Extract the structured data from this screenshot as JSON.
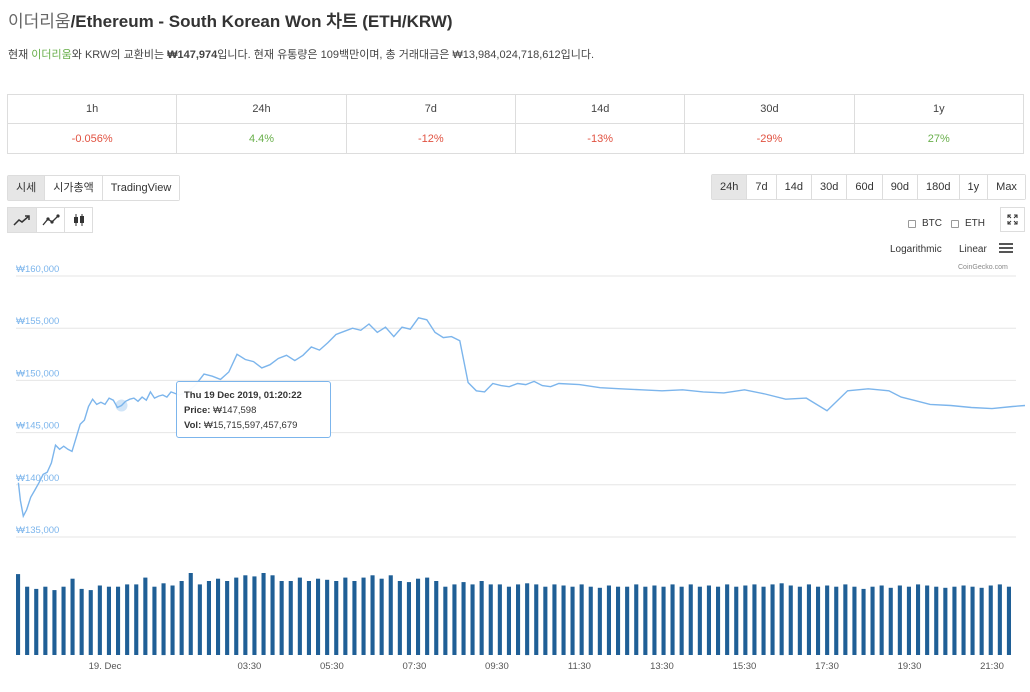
{
  "header": {
    "title_prefix": "이더리움",
    "title_main": "/Ethereum - South Korean Won 차트 (ETH/KRW)"
  },
  "description": {
    "pre": "현재 ",
    "coin_link": "이더리움",
    "mid": "와 KRW의 교환비는 ",
    "rate": "₩147,974",
    "post": "입니다. 현재 유통량은 109백만이며, 총 거래대금은 ₩13,984,024,718,612입니다."
  },
  "performance": {
    "headers": [
      "1h",
      "24h",
      "7d",
      "14d",
      "30d",
      "1y"
    ],
    "values": [
      "-0.056%",
      "4.4%",
      "-12%",
      "-13%",
      "-29%",
      "27%"
    ],
    "signs": [
      "neg",
      "pos",
      "neg",
      "neg",
      "neg",
      "pos"
    ],
    "colors": {
      "negative": "#e15241",
      "positive": "#6ab04c"
    }
  },
  "view_tabs": [
    "시세",
    "시가총액",
    "TradingView"
  ],
  "view_active": 0,
  "range_tabs": [
    "24h",
    "7d",
    "14d",
    "30d",
    "60d",
    "90d",
    "180d",
    "1y",
    "Max"
  ],
  "range_active": 0,
  "chart_type_icons": [
    "line-chart-icon",
    "ohlc-line-icon",
    "candlestick-icon"
  ],
  "compare": {
    "btc": "BTC",
    "eth": "ETH"
  },
  "scale": {
    "log": "Logarithmic",
    "linear": "Linear"
  },
  "credit": "CoinGecko.com",
  "tooltip": {
    "date": "Thu 19 Dec 2019, 01:20:22",
    "price_label": "Price:",
    "price": "₩147,598",
    "vol_label": "Vol:",
    "vol": "₩15,715,597,457,679"
  },
  "colors": {
    "line": "#7cb5ec",
    "volume": "#1f5f96",
    "grid": "#e6e6e6",
    "axis_label": "#7cb5ec"
  },
  "chart_data": {
    "type": "line",
    "ylim": [
      135000,
      160000
    ],
    "yticks": [
      "₩160,000",
      "₩155,000",
      "₩150,000",
      "₩145,000",
      "₩140,000",
      "₩135,000"
    ],
    "ytick_values": [
      160000,
      155000,
      150000,
      145000,
      140000,
      135000
    ],
    "xticks": [
      "19. Dec",
      "03:30",
      "05:30",
      "07:30",
      "09:30",
      "11:30",
      "13:30",
      "15:30",
      "17:30",
      "19:30",
      "21:30"
    ],
    "xtick_hours": [
      0,
      3.5,
      5.5,
      7.5,
      9.5,
      11.5,
      13.5,
      15.5,
      17.5,
      19.5,
      21.5
    ],
    "x_hours": [
      -2.1,
      -2.05,
      -1.98,
      -1.9,
      -1.8,
      -1.7,
      -1.6,
      -1.5,
      -1.4,
      -1.3,
      -1.2,
      -1.1,
      -1.0,
      -0.9,
      -0.8,
      -0.7,
      -0.6,
      -0.5,
      -0.4,
      -0.3,
      -0.2,
      -0.1,
      0.0,
      0.1,
      0.2,
      0.3,
      0.4,
      0.5,
      0.6,
      0.7,
      0.8,
      0.9,
      1.0,
      1.1,
      1.2,
      1.3,
      1.4,
      1.5,
      1.6,
      1.8,
      2.0,
      2.2,
      2.4,
      2.6,
      2.8,
      3.0,
      3.2,
      3.4,
      3.6,
      3.8,
      4.0,
      4.2,
      4.4,
      4.6,
      4.8,
      5.0,
      5.2,
      5.4,
      5.6,
      5.8,
      6.0,
      6.2,
      6.4,
      6.6,
      6.8,
      7.0,
      7.2,
      7.4,
      7.6,
      7.8,
      8.0,
      8.2,
      8.4,
      8.6,
      8.8,
      9.0,
      9.2,
      9.4,
      9.6,
      9.8,
      10.0,
      10.2,
      10.4,
      10.6,
      10.8,
      11.0,
      11.5,
      12.0,
      12.5,
      13.0,
      13.5,
      14.0,
      14.5,
      15.0,
      15.5,
      16.0,
      16.5,
      17.0,
      17.5,
      18.0,
      18.5,
      19.0,
      19.3,
      19.6,
      20.0,
      20.5,
      21.0,
      21.5,
      22.0,
      22.3
    ],
    "price": [
      140200,
      138500,
      137000,
      137600,
      138800,
      139500,
      140200,
      141000,
      141200,
      142100,
      143800,
      143400,
      143700,
      143400,
      143200,
      144500,
      145800,
      146200,
      147500,
      148200,
      147700,
      147900,
      147700,
      148300,
      148100,
      147400,
      147598,
      148000,
      148200,
      148300,
      148000,
      148400,
      148100,
      148900,
      148300,
      148500,
      148600,
      148400,
      148900,
      148600,
      148900,
      149600,
      150600,
      150400,
      150100,
      150800,
      152500,
      152000,
      151800,
      151200,
      151500,
      152100,
      152400,
      151900,
      152400,
      153200,
      152900,
      153600,
      154400,
      154700,
      155000,
      154800,
      155400,
      154600,
      155100,
      154200,
      155100,
      154900,
      156000,
      155800,
      154600,
      154100,
      154200,
      153800,
      149800,
      149000,
      148900,
      149700,
      149500,
      149400,
      149700,
      149600,
      149900,
      149500,
      149400,
      149700,
      149600,
      149300,
      149200,
      149100,
      149000,
      149100,
      148900,
      148800,
      149100,
      148700,
      148200,
      148300,
      147100,
      149000,
      149200,
      149000,
      148400,
      148100,
      147700,
      147600,
      147400,
      147300,
      147500,
      147600
    ]
  },
  "volume_data": [
    71,
    60,
    58,
    60,
    57,
    60,
    67,
    58,
    57,
    61,
    60,
    60,
    62,
    62,
    68,
    60,
    63,
    61,
    65,
    72,
    62,
    65,
    67,
    65,
    68,
    70,
    69,
    72,
    70,
    65,
    65,
    68,
    65,
    67,
    66,
    65,
    68,
    65,
    68,
    70,
    67,
    70,
    65,
    64,
    67,
    68,
    65,
    60,
    62,
    64,
    62,
    65,
    62,
    62,
    60,
    62,
    63,
    62,
    60,
    62,
    61,
    60,
    62,
    60,
    59,
    61,
    60,
    60,
    62,
    60,
    61,
    60,
    62,
    60,
    62,
    60,
    61,
    60,
    62,
    60,
    61,
    62,
    60,
    62,
    63,
    61,
    60,
    62,
    60,
    61,
    60,
    62,
    60,
    58,
    60,
    61,
    59,
    61,
    60,
    62,
    61,
    60,
    59,
    60,
    61,
    60,
    59,
    61,
    62,
    60
  ]
}
